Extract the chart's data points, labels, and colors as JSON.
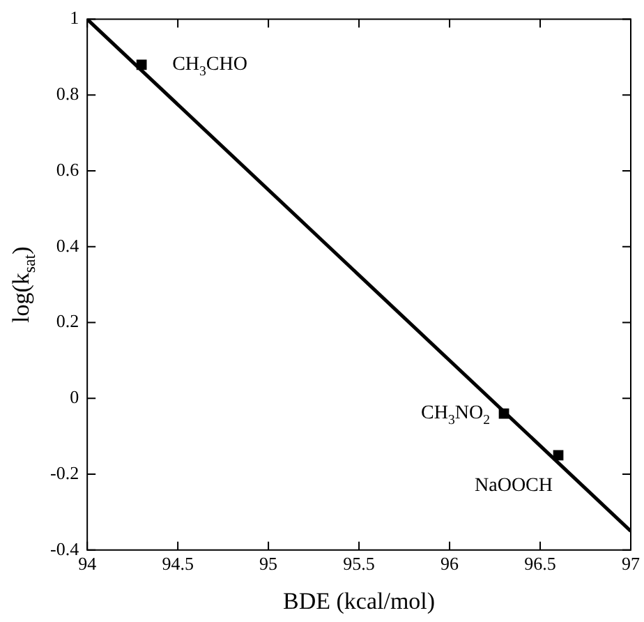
{
  "chart_data": {
    "type": "scatter",
    "xlabel": "BDE (kcal/mol)",
    "ylabel": "log(k$_{sat}$)",
    "xlim": [
      94,
      97
    ],
    "xticks": [
      94,
      94.5,
      95,
      95.5,
      96,
      96.5,
      97
    ],
    "ylim": [
      -0.4,
      1
    ],
    "yticks": [
      -0.4,
      -0.2,
      0,
      0.2,
      0.4,
      0.6,
      0.8,
      1
    ],
    "grid": false,
    "legend": false,
    "series": [
      {
        "type": "scatter",
        "marker": "square",
        "color": "#000000",
        "x": [
          94.3,
          96.3,
          96.6
        ],
        "values": [
          0.88,
          -0.04,
          -0.15
        ]
      },
      {
        "type": "line",
        "marker": "none",
        "color": "#000000",
        "x": [
          94,
          97
        ],
        "values": [
          1.0,
          -0.35
        ]
      }
    ],
    "annotations": [
      {
        "text": "CH$_{3}$CHO",
        "x": 94.3,
        "y": 0.88
      },
      {
        "text": "CH$_{3}$NO$_{2}$",
        "x": 96.3,
        "y": -0.04
      },
      {
        "text": "NaOOCH",
        "x": 96.6,
        "y": -0.15
      }
    ]
  }
}
